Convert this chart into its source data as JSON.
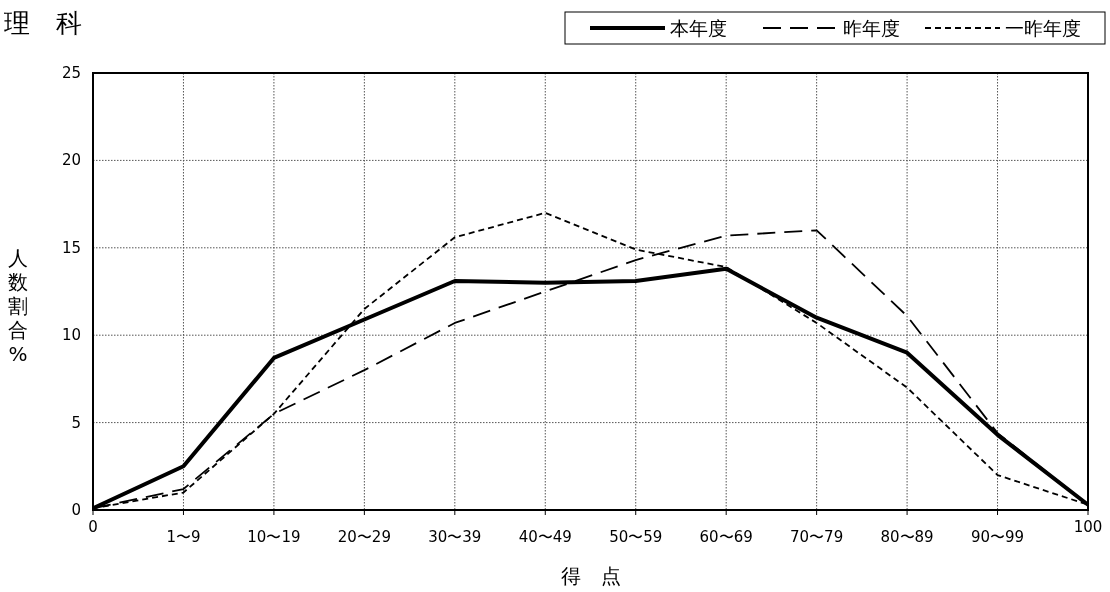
{
  "chart_data": {
    "type": "line",
    "title": "理　科",
    "xlabel": "得　点",
    "ylabel": "人数割合%",
    "categories": [
      "0",
      "1〜9",
      "10〜19",
      "20〜29",
      "30〜39",
      "40〜49",
      "50〜59",
      "60〜69",
      "70〜79",
      "80〜89",
      "90〜99",
      "100"
    ],
    "series": [
      {
        "name": "本年度",
        "color": "#000000",
        "line_style": "solid",
        "values": [
          0.1,
          2.5,
          8.7,
          10.9,
          13.1,
          13.0,
          13.1,
          13.8,
          11.0,
          9.0,
          4.3,
          0.3
        ]
      },
      {
        "name": "昨年度",
        "color": "#000000",
        "line_style": "dashed",
        "values": [
          0.1,
          1.2,
          5.5,
          8.0,
          10.7,
          12.5,
          14.3,
          15.7,
          16.0,
          11.1,
          4.4,
          0.3
        ]
      },
      {
        "name": "一昨年度",
        "color": "#000000",
        "line_style": "dotted",
        "values": [
          0.1,
          1.0,
          5.5,
          11.5,
          15.6,
          17.0,
          14.9,
          13.9,
          10.7,
          7.0,
          2.0,
          0.3
        ]
      }
    ],
    "ylim": [
      0,
      25
    ],
    "yticks": [
      0,
      5,
      10,
      15,
      20,
      25
    ],
    "grid": true,
    "legend": "top right",
    "marker": "none"
  }
}
